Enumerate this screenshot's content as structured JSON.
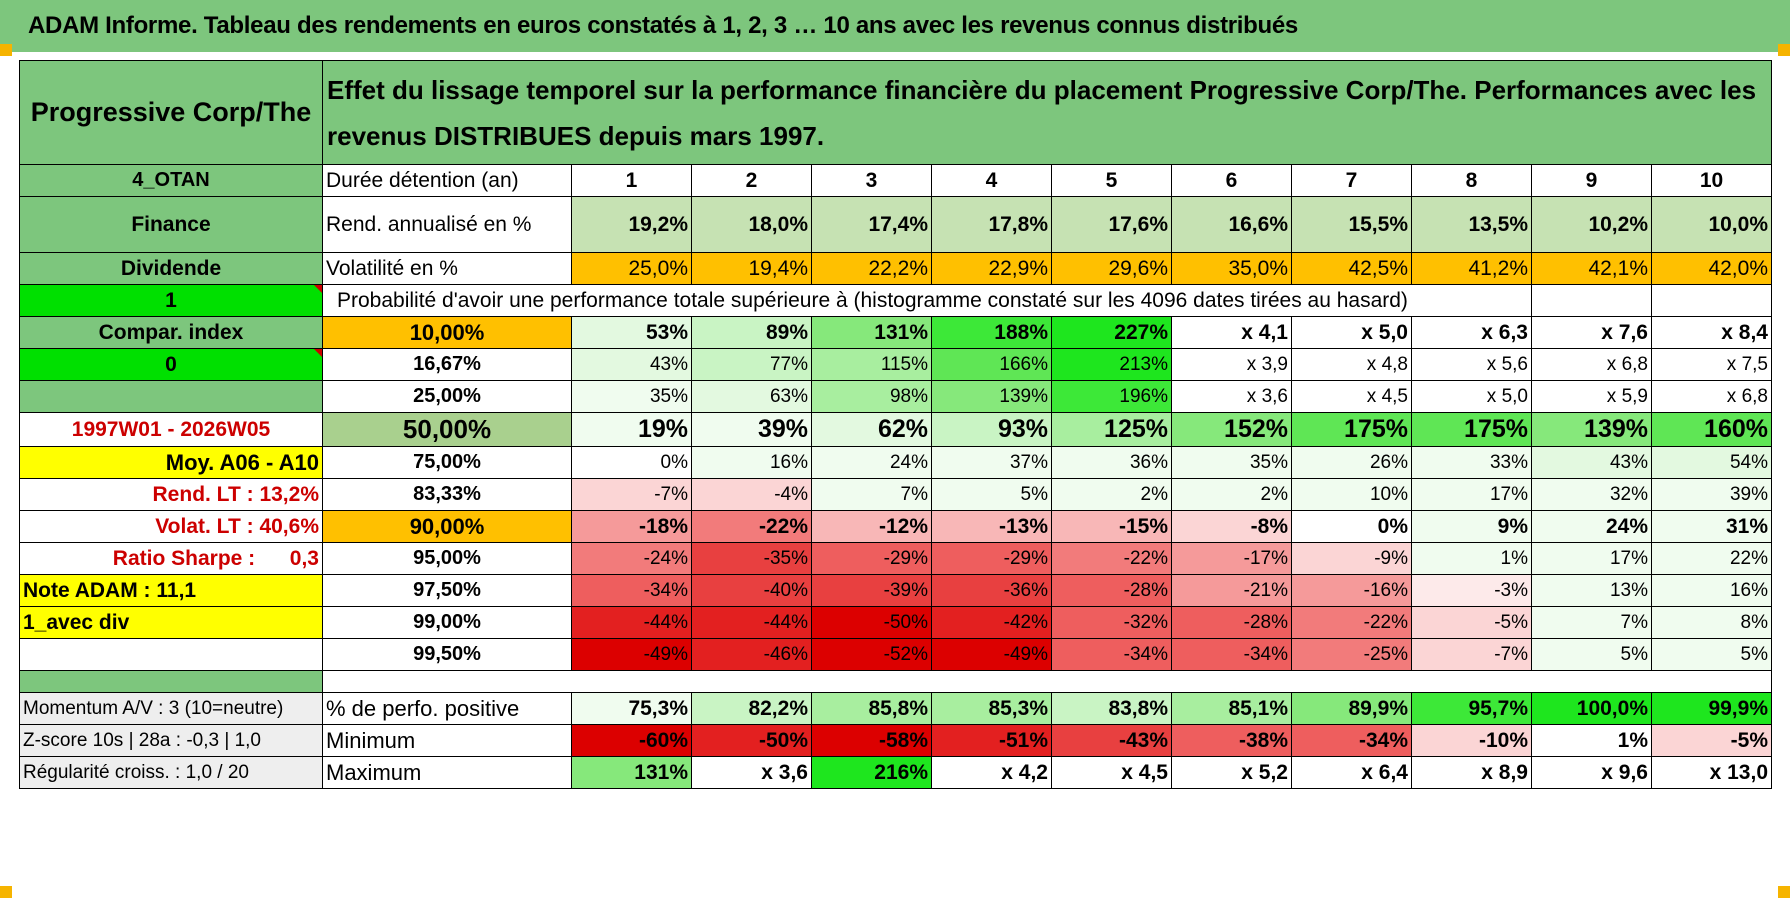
{
  "title": "ADAM Informe. Tableau des rendements en euros constatés à 1, 2, 3 … 10 ans avec les revenus connus distribués",
  "header": {
    "fund_name": "Progressive Corp/The",
    "description": "Effet du lissage temporel sur la performance financière du placement Progressive Corp/The. Performances avec les revenus DISTRIBUES depuis mars 1997."
  },
  "years_row": {
    "side": "4_OTAN",
    "label": "Durée détention (an)",
    "values": [
      "1",
      "2",
      "3",
      "4",
      "5",
      "6",
      "7",
      "8",
      "9",
      "10"
    ]
  },
  "rend_row": {
    "side": "Finance",
    "label": "Rend. annualisé en %",
    "values": [
      "19,2%",
      "18,0%",
      "17,4%",
      "17,8%",
      "17,6%",
      "16,6%",
      "15,5%",
      "13,5%",
      "10,2%",
      "10,0%"
    ]
  },
  "vol_row": {
    "side": "Dividende",
    "label": "Volatilité en %",
    "values": [
      "25,0%",
      "19,4%",
      "22,2%",
      "22,9%",
      "29,6%",
      "35,0%",
      "42,5%",
      "41,2%",
      "42,1%",
      "42,0%"
    ]
  },
  "prob_row": {
    "side": "1",
    "label": "Probabilité d'avoir une performance totale supérieure à (histogramme constaté sur les 4096 dates tirées au hasard)"
  },
  "prob_rows": [
    {
      "side": "Compar. index",
      "pct": "10,00%",
      "values": [
        "53%",
        "89%",
        "131%",
        "188%",
        "227%",
        "x 4,1",
        "x 5,0",
        "x 6,3",
        "x 7,6",
        "x 8,4"
      ]
    },
    {
      "side": "0",
      "pct": "16,67%",
      "values": [
        "43%",
        "77%",
        "115%",
        "166%",
        "213%",
        "x 3,9",
        "x 4,8",
        "x 5,6",
        "x 6,8",
        "x 7,5"
      ]
    },
    {
      "side": "",
      "pct": "25,00%",
      "values": [
        "35%",
        "63%",
        "98%",
        "139%",
        "196%",
        "x 3,6",
        "x 4,5",
        "x 5,0",
        "x 5,9",
        "x 6,8"
      ]
    },
    {
      "side": "1997W01 - 2026W05",
      "pct": "50,00%",
      "values": [
        "19%",
        "39%",
        "62%",
        "93%",
        "125%",
        "152%",
        "175%",
        "175%",
        "139%",
        "160%"
      ]
    },
    {
      "side": "Moy. A06 - A10",
      "pct": "75,00%",
      "values": [
        "0%",
        "16%",
        "24%",
        "37%",
        "36%",
        "35%",
        "26%",
        "33%",
        "43%",
        "54%"
      ]
    },
    {
      "side_label": "Rend. LT :",
      "side_value": "13,2%",
      "pct": "83,33%",
      "values": [
        "-7%",
        "-4%",
        "7%",
        "5%",
        "2%",
        "2%",
        "10%",
        "17%",
        "32%",
        "39%"
      ]
    },
    {
      "side_label": "Volat. LT :",
      "side_value": "40,6%",
      "pct": "90,00%",
      "values": [
        "-18%",
        "-22%",
        "-12%",
        "-13%",
        "-15%",
        "-8%",
        "0%",
        "9%",
        "24%",
        "31%"
      ]
    },
    {
      "side_label": "Ratio Sharpe :",
      "side_value": "0,3",
      "pct": "95,00%",
      "values": [
        "-24%",
        "-35%",
        "-29%",
        "-29%",
        "-22%",
        "-17%",
        "-9%",
        "1%",
        "17%",
        "22%"
      ]
    },
    {
      "side": "Note ADAM : 11,1",
      "pct": "97,50%",
      "values": [
        "-34%",
        "-40%",
        "-39%",
        "-36%",
        "-28%",
        "-21%",
        "-16%",
        "-3%",
        "13%",
        "16%"
      ]
    },
    {
      "side": "1_avec div",
      "pct": "99,00%",
      "values": [
        "-44%",
        "-44%",
        "-50%",
        "-42%",
        "-32%",
        "-28%",
        "-22%",
        "-5%",
        "7%",
        "8%"
      ]
    },
    {
      "side": "",
      "pct": "99,50%",
      "values": [
        "-49%",
        "-46%",
        "-52%",
        "-49%",
        "-34%",
        "-34%",
        "-25%",
        "-7%",
        "5%",
        "5%"
      ]
    }
  ],
  "bottom_rows": [
    {
      "side": "Momentum A/V : 3 (10=neutre)",
      "label": "% de perfo. positive",
      "values": [
        "75,3%",
        "82,2%",
        "85,8%",
        "85,3%",
        "83,8%",
        "85,1%",
        "89,9%",
        "95,7%",
        "100,0%",
        "99,9%"
      ]
    },
    {
      "side": "Z-score 10s | 28a : -0,3 | 1,0",
      "label": "Minimum",
      "values": [
        "-60%",
        "-50%",
        "-58%",
        "-51%",
        "-43%",
        "-38%",
        "-34%",
        "-10%",
        "1%",
        "-5%"
      ]
    },
    {
      "side": "Régularité croiss. : 1,0 / 20",
      "label": "Maximum",
      "values": [
        "131%",
        "x 3,6",
        "216%",
        "x 4,2",
        "x 4,5",
        "x 5,2",
        "x 6,4",
        "x 8,9",
        "x 9,6",
        "x 13,0"
      ]
    }
  ],
  "colors": {
    "header_green": "#7dc67d",
    "bright_green": "#00e000",
    "yellow": "#ffff00",
    "orange": "#ffc000",
    "label_red": "#cc0000"
  }
}
